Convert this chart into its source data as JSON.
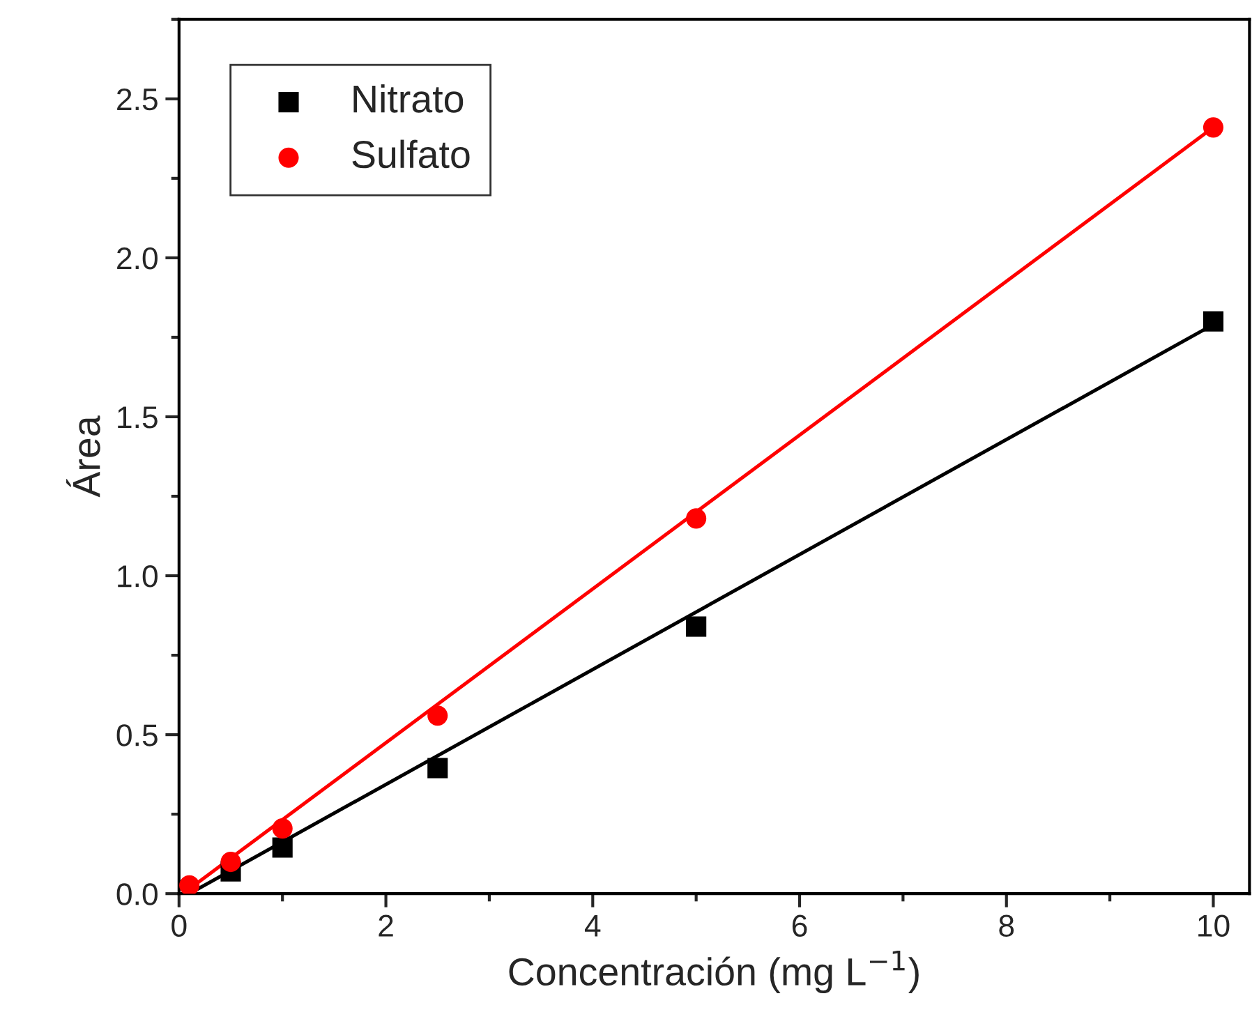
{
  "chart_data": {
    "type": "scatter",
    "xlabel": "Concentración (mg L$^{−1}$)",
    "ylabel": "Área",
    "xlim": [
      0,
      10.35
    ],
    "xticks": [
      0,
      2,
      4,
      6,
      8,
      10
    ],
    "ylim": [
      0,
      2.75
    ],
    "yticks": [
      {
        "value": 0,
        "label": "0.0"
      },
      0.5,
      {
        "value": 1,
        "label": "1.0"
      },
      1.5,
      {
        "value": 2,
        "label": "2.0"
      },
      2.5
    ],
    "grid": false,
    "legend": "top left",
    "series": [
      {
        "name": "Nitrato",
        "marker": "square",
        "color": "#000000",
        "x": [
          0.5,
          1,
          2.5,
          5,
          10
        ],
        "values": [
          0.07,
          0.145,
          0.395,
          0.84,
          1.8
        ]
      },
      {
        "name": "Sulfato",
        "marker": "circle",
        "color": "#ff0000",
        "x": [
          0.1,
          0.5,
          1,
          2.5,
          5,
          10
        ],
        "values": [
          0.026,
          0.1,
          0.205,
          0.56,
          1.18,
          2.41
        ]
      },
      {
        "type": "line",
        "marker": "none",
        "line_style": "solid",
        "color": "#000000",
        "x": [
          0.1,
          10
        ],
        "values": [
          0.0,
          1.79
        ]
      },
      {
        "type": "line",
        "marker": "none",
        "line_style": "solid",
        "color": "#ff0000",
        "x": [
          0.1,
          10
        ],
        "values": [
          0.015,
          2.41
        ]
      }
    ]
  }
}
